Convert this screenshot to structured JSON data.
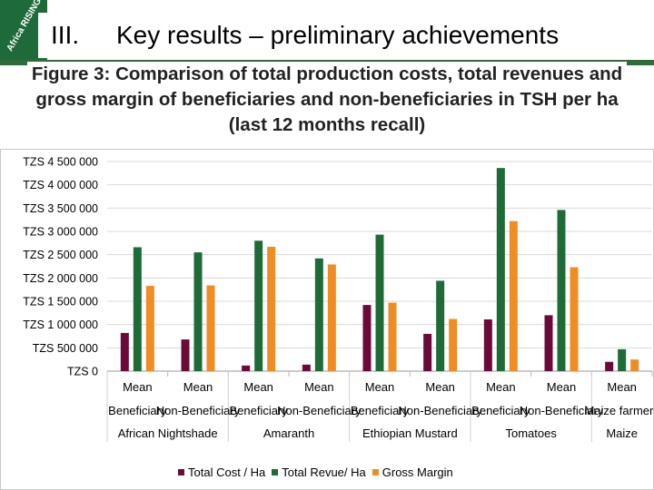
{
  "header": {
    "logo_text": "Africa RISING",
    "section_number": "III.",
    "section_title": "Key results – preliminary achievements"
  },
  "figure_title": "Figure 3: Comparison of total production costs, total revenues and gross margin of beneficiaries and non-beneficiaries in TSH per ha (last 12 months recall)",
  "colors": {
    "total_cost": "#6b0a38",
    "total_revenue": "#1e6b38",
    "gross_margin": "#ef8d24"
  },
  "chart_data": {
    "type": "bar",
    "ylim": [
      0,
      4500000
    ],
    "y_ticks": [
      {
        "value": 4500000,
        "label": "TZS 4 500 000"
      },
      {
        "value": 4000000,
        "label": "TZS 4 000 000"
      },
      {
        "value": 3500000,
        "label": "TZS 3 500 000"
      },
      {
        "value": 3000000,
        "label": "TZS 3 000 000"
      },
      {
        "value": 2500000,
        "label": "TZS 2 500 000"
      },
      {
        "value": 2000000,
        "label": "TZS 2 000 000"
      },
      {
        "value": 1500000,
        "label": "TZS 1 500 000"
      },
      {
        "value": 1000000,
        "label": "TZS 1 000 000"
      },
      {
        "value": 500000,
        "label": "TZS 500 000"
      },
      {
        "value": 0,
        "label": "TZS 0"
      }
    ],
    "categories": [
      {
        "stat": "Mean",
        "group": "Beneficiary"
      },
      {
        "stat": "Mean",
        "group": "Non-Beneficiary"
      },
      {
        "stat": "Mean",
        "group": "Beneficiary"
      },
      {
        "stat": "Mean",
        "group": "Non-Beneficiary"
      },
      {
        "stat": "Mean",
        "group": "Beneficiary"
      },
      {
        "stat": "Mean",
        "group": "Non-Beneficiary"
      },
      {
        "stat": "Mean",
        "group": "Beneficiary"
      },
      {
        "stat": "Mean",
        "group": "Non-Beneficiary"
      },
      {
        "stat": "Mean",
        "group": "Maize farmers"
      }
    ],
    "crops": [
      {
        "name": "African Nightshade",
        "span": [
          0,
          1
        ]
      },
      {
        "name": "Amaranth",
        "span": [
          2,
          3
        ]
      },
      {
        "name": "Ethiopian Mustard",
        "span": [
          4,
          5
        ]
      },
      {
        "name": "Tomatoes",
        "span": [
          6,
          7
        ]
      },
      {
        "name": "Maize",
        "span": [
          8,
          8
        ]
      }
    ],
    "series": [
      {
        "name": "Total Cost / Ha",
        "key": "total_cost",
        "values": [
          820000,
          680000,
          120000,
          140000,
          1420000,
          800000,
          1110000,
          1200000,
          200000
        ]
      },
      {
        "name": "Total Revue/ Ha",
        "key": "total_revenue",
        "values": [
          2660000,
          2550000,
          2800000,
          2420000,
          2930000,
          1940000,
          4360000,
          3460000,
          470000
        ]
      },
      {
        "name": "Gross Margin",
        "key": "gross_margin",
        "values": [
          1830000,
          1840000,
          2670000,
          2290000,
          1470000,
          1120000,
          3220000,
          2230000,
          250000
        ]
      }
    ]
  }
}
